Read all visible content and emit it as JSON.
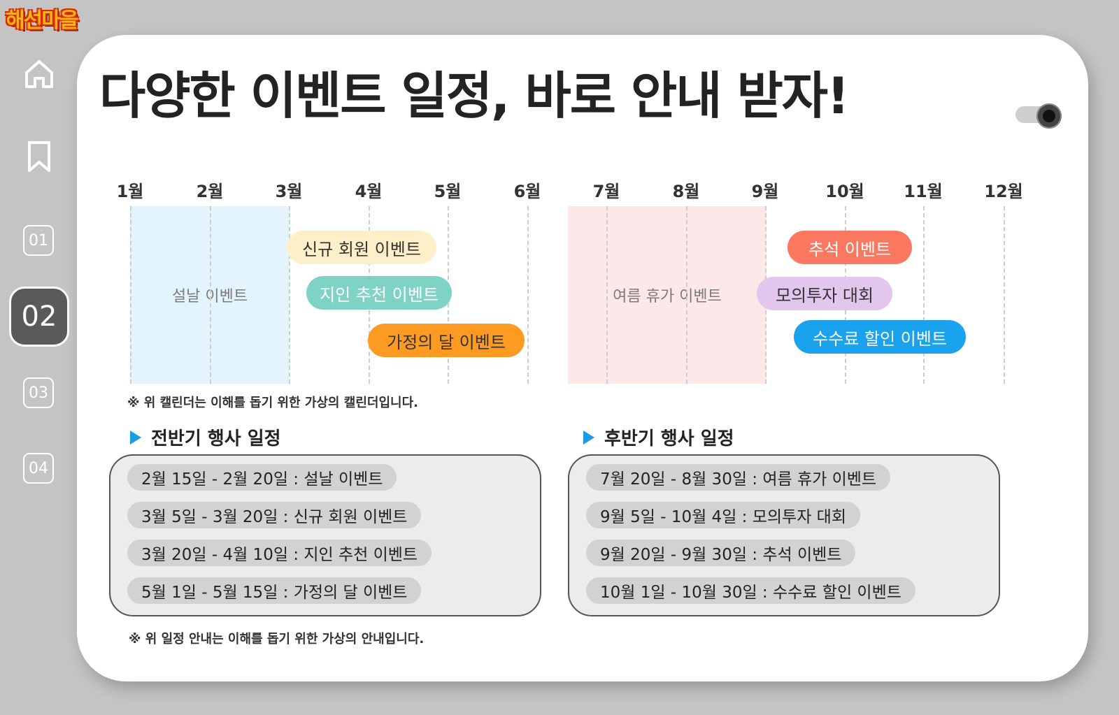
{
  "logo": "해선마을",
  "title": "다양한 이벤트 일정, 바로 안내 받자!",
  "sidebar": {
    "icons": [
      "home-icon",
      "bookmark-icon"
    ],
    "items": [
      {
        "label": "01",
        "active": false
      },
      {
        "label": "02",
        "active": true
      },
      {
        "label": "03",
        "active": false
      },
      {
        "label": "04",
        "active": false
      }
    ]
  },
  "calendar": {
    "months": [
      "1월",
      "2월",
      "3월",
      "4월",
      "5월",
      "6월",
      "7월",
      "8월",
      "9월",
      "10월",
      "11월",
      "12월"
    ],
    "range_blocks": [
      {
        "label": "설날 이벤트",
        "color": "#e3f4fd"
      },
      {
        "label": "여름 휴가 이벤트",
        "color": "#fde8e9"
      }
    ],
    "events": [
      {
        "label": "신규 회원 이벤트",
        "bg": "#fdf0c8",
        "fg": "#333333"
      },
      {
        "label": "지인 추천 이벤트",
        "bg": "#7fd3c4",
        "fg": "#ffffff"
      },
      {
        "label": "가정의 달 이벤트",
        "bg": "#fd9a22",
        "fg": "#333333"
      },
      {
        "label": "추석 이벤트",
        "bg": "#f9785f",
        "fg": "#ffffff"
      },
      {
        "label": "모의투자 대회",
        "bg": "#e3c6ee",
        "fg": "#333333"
      },
      {
        "label": "수수료 할인 이벤트",
        "bg": "#1aa3ec",
        "fg": "#ffffff"
      }
    ],
    "note": "※ 위 캘린더는 이해를 돕기 위한 가상의 캘린더입니다."
  },
  "schedule": {
    "first_half": {
      "title": "전반기 행사 일정",
      "rows": [
        "2월 15일 - 2월 20일  :  설날 이벤트",
        "3월 5일 - 3월 20일  :  신규 회원 이벤트",
        "3월 20일 - 4월 10일  :  지인 추천 이벤트",
        "5월 1일 - 5월 15일  :  가정의 달 이벤트"
      ]
    },
    "second_half": {
      "title": "후반기 행사 일정",
      "rows": [
        "7월 20일 - 8월 30일  :  여름 휴가 이벤트",
        "9월 5일 - 10월 4일  :  모의투자 대회",
        "9월 20일 - 9월 30일  :  추석 이벤트",
        "10월 1일 - 10월 30일  :  수수료 할인 이벤트"
      ]
    },
    "note": "※ 위 일정 안내는 이해를 돕기 위한 가상의 안내입니다."
  }
}
